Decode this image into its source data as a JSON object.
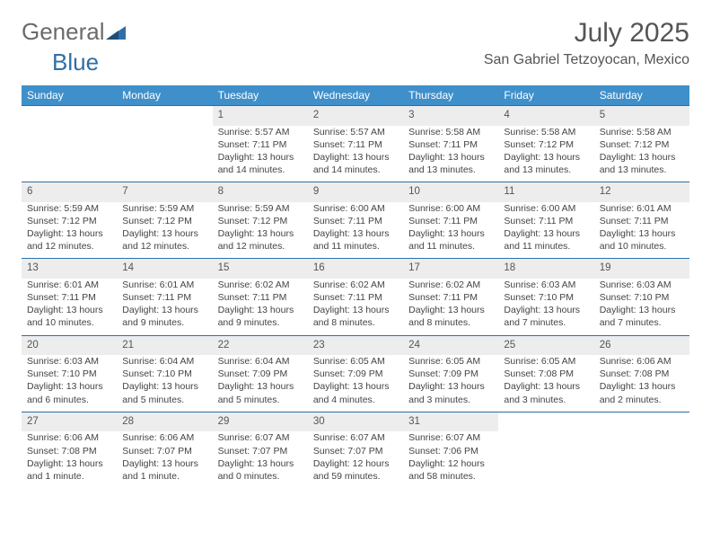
{
  "brand": {
    "part1": "General",
    "part2": "Blue"
  },
  "title": "July 2025",
  "location": "San Gabriel Tetzoyocan, Mexico",
  "colors": {
    "header_bg": "#3f8fca",
    "header_text": "#ffffff",
    "daynum_bg": "#ededed",
    "rule": "#2f6fa7",
    "text": "#444444",
    "title_text": "#555555",
    "brand_gray": "#6b6b6b",
    "brand_blue": "#2f6fa7"
  },
  "weekdays": [
    "Sunday",
    "Monday",
    "Tuesday",
    "Wednesday",
    "Thursday",
    "Friday",
    "Saturday"
  ],
  "grid": [
    [
      null,
      null,
      {
        "n": "1",
        "sr": "5:57 AM",
        "ss": "7:11 PM",
        "dl": "13 hours and 14 minutes."
      },
      {
        "n": "2",
        "sr": "5:57 AM",
        "ss": "7:11 PM",
        "dl": "13 hours and 14 minutes."
      },
      {
        "n": "3",
        "sr": "5:58 AM",
        "ss": "7:11 PM",
        "dl": "13 hours and 13 minutes."
      },
      {
        "n": "4",
        "sr": "5:58 AM",
        "ss": "7:12 PM",
        "dl": "13 hours and 13 minutes."
      },
      {
        "n": "5",
        "sr": "5:58 AM",
        "ss": "7:12 PM",
        "dl": "13 hours and 13 minutes."
      }
    ],
    [
      {
        "n": "6",
        "sr": "5:59 AM",
        "ss": "7:12 PM",
        "dl": "13 hours and 12 minutes."
      },
      {
        "n": "7",
        "sr": "5:59 AM",
        "ss": "7:12 PM",
        "dl": "13 hours and 12 minutes."
      },
      {
        "n": "8",
        "sr": "5:59 AM",
        "ss": "7:12 PM",
        "dl": "13 hours and 12 minutes."
      },
      {
        "n": "9",
        "sr": "6:00 AM",
        "ss": "7:11 PM",
        "dl": "13 hours and 11 minutes."
      },
      {
        "n": "10",
        "sr": "6:00 AM",
        "ss": "7:11 PM",
        "dl": "13 hours and 11 minutes."
      },
      {
        "n": "11",
        "sr": "6:00 AM",
        "ss": "7:11 PM",
        "dl": "13 hours and 11 minutes."
      },
      {
        "n": "12",
        "sr": "6:01 AM",
        "ss": "7:11 PM",
        "dl": "13 hours and 10 minutes."
      }
    ],
    [
      {
        "n": "13",
        "sr": "6:01 AM",
        "ss": "7:11 PM",
        "dl": "13 hours and 10 minutes."
      },
      {
        "n": "14",
        "sr": "6:01 AM",
        "ss": "7:11 PM",
        "dl": "13 hours and 9 minutes."
      },
      {
        "n": "15",
        "sr": "6:02 AM",
        "ss": "7:11 PM",
        "dl": "13 hours and 9 minutes."
      },
      {
        "n": "16",
        "sr": "6:02 AM",
        "ss": "7:11 PM",
        "dl": "13 hours and 8 minutes."
      },
      {
        "n": "17",
        "sr": "6:02 AM",
        "ss": "7:11 PM",
        "dl": "13 hours and 8 minutes."
      },
      {
        "n": "18",
        "sr": "6:03 AM",
        "ss": "7:10 PM",
        "dl": "13 hours and 7 minutes."
      },
      {
        "n": "19",
        "sr": "6:03 AM",
        "ss": "7:10 PM",
        "dl": "13 hours and 7 minutes."
      }
    ],
    [
      {
        "n": "20",
        "sr": "6:03 AM",
        "ss": "7:10 PM",
        "dl": "13 hours and 6 minutes."
      },
      {
        "n": "21",
        "sr": "6:04 AM",
        "ss": "7:10 PM",
        "dl": "13 hours and 5 minutes."
      },
      {
        "n": "22",
        "sr": "6:04 AM",
        "ss": "7:09 PM",
        "dl": "13 hours and 5 minutes."
      },
      {
        "n": "23",
        "sr": "6:05 AM",
        "ss": "7:09 PM",
        "dl": "13 hours and 4 minutes."
      },
      {
        "n": "24",
        "sr": "6:05 AM",
        "ss": "7:09 PM",
        "dl": "13 hours and 3 minutes."
      },
      {
        "n": "25",
        "sr": "6:05 AM",
        "ss": "7:08 PM",
        "dl": "13 hours and 3 minutes."
      },
      {
        "n": "26",
        "sr": "6:06 AM",
        "ss": "7:08 PM",
        "dl": "13 hours and 2 minutes."
      }
    ],
    [
      {
        "n": "27",
        "sr": "6:06 AM",
        "ss": "7:08 PM",
        "dl": "13 hours and 1 minute."
      },
      {
        "n": "28",
        "sr": "6:06 AM",
        "ss": "7:07 PM",
        "dl": "13 hours and 1 minute."
      },
      {
        "n": "29",
        "sr": "6:07 AM",
        "ss": "7:07 PM",
        "dl": "13 hours and 0 minutes."
      },
      {
        "n": "30",
        "sr": "6:07 AM",
        "ss": "7:07 PM",
        "dl": "12 hours and 59 minutes."
      },
      {
        "n": "31",
        "sr": "6:07 AM",
        "ss": "7:06 PM",
        "dl": "12 hours and 58 minutes."
      },
      null,
      null
    ]
  ],
  "labels": {
    "sunrise": "Sunrise:",
    "sunset": "Sunset:",
    "daylight": "Daylight:"
  }
}
